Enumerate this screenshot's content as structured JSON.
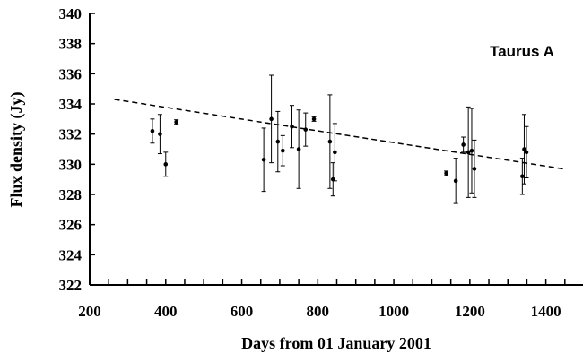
{
  "chart_data": {
    "type": "scatter",
    "title": "",
    "annotation": "Taurus A",
    "xlabel": "Days from 01 January 2001",
    "ylabel": "Flux density (Jy)",
    "xlim": [
      200,
      1500
    ],
    "ylim": [
      322,
      340
    ],
    "x_ticks": [
      200,
      400,
      600,
      800,
      1000,
      1200,
      1400
    ],
    "y_ticks": [
      322,
      324,
      326,
      328,
      330,
      332,
      334,
      336,
      338,
      340
    ],
    "x_minor_step": 50,
    "grid": false,
    "legend": "none",
    "series": [
      {
        "x": [
          365,
          385,
          400,
          428,
          658,
          678,
          695,
          708,
          732,
          750,
          768,
          790,
          832,
          840,
          845,
          1138,
          1163,
          1183,
          1196,
          1205,
          1212,
          1338,
          1343,
          1349
        ],
        "y": [
          332.2,
          332.0,
          330.0,
          332.8,
          330.3,
          333.0,
          331.5,
          330.9,
          332.5,
          331.0,
          332.3,
          333.0,
          331.5,
          329.0,
          330.8,
          329.4,
          328.9,
          331.3,
          330.8,
          330.9,
          329.7,
          329.2,
          331.0,
          330.8
        ],
        "err": [
          0.8,
          1.3,
          0.8,
          0.15,
          2.1,
          2.9,
          2.0,
          1.0,
          1.4,
          2.6,
          1.1,
          0.15,
          3.1,
          1.1,
          1.9,
          0.15,
          1.5,
          0.5,
          3.0,
          2.8,
          1.9,
          1.2,
          2.3,
          1.7
        ]
      }
    ],
    "trend_line": {
      "style": "dashed",
      "x": [
        265,
        1445
      ],
      "y": [
        334.3,
        329.7
      ]
    }
  }
}
